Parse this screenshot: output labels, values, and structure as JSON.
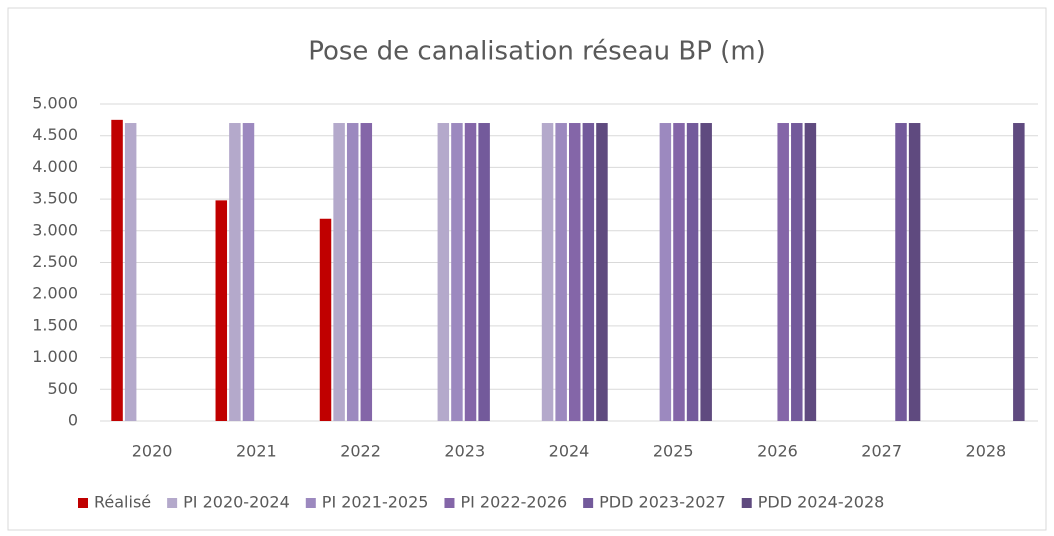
{
  "chart_data": {
    "type": "bar",
    "title": "Pose de canalisation réseau BP (m)",
    "categories": [
      "2020",
      "2021",
      "2022",
      "2023",
      "2024",
      "2025",
      "2026",
      "2027",
      "2028"
    ],
    "series": [
      {
        "name": "Réalisé",
        "color": "#c00000",
        "values": [
          4750,
          3480,
          3190,
          null,
          null,
          null,
          null,
          null,
          null
        ]
      },
      {
        "name": "PI 2020-2024",
        "color": "#b4a9cb",
        "values": [
          4700,
          4700,
          4700,
          4700,
          4700,
          null,
          null,
          null,
          null
        ]
      },
      {
        "name": "PI 2021-2025",
        "color": "#9c89bf",
        "values": [
          null,
          4700,
          4700,
          4700,
          4700,
          4700,
          null,
          null,
          null
        ]
      },
      {
        "name": "PI 2022-2026",
        "color": "#8466a8",
        "values": [
          null,
          null,
          4700,
          4700,
          4700,
          4700,
          4700,
          null,
          null
        ]
      },
      {
        "name": "PDD 2023-2027",
        "color": "#735a9b",
        "values": [
          null,
          null,
          null,
          4700,
          4700,
          4700,
          4700,
          4700,
          null
        ]
      },
      {
        "name": "PDD 2024-2028",
        "color": "#5f4a7f",
        "values": [
          null,
          null,
          null,
          null,
          4700,
          4700,
          4700,
          4700,
          4700
        ]
      }
    ],
    "ylim": [
      0,
      5000
    ],
    "yticks": [
      0,
      500,
      {
        "value": 1000,
        "label": "1.000"
      },
      {
        "value": 1500,
        "label": "1.500"
      },
      {
        "value": 2000,
        "label": "2.000"
      },
      {
        "value": 2500,
        "label": "2.500"
      },
      {
        "value": 3000,
        "label": "3.000"
      },
      {
        "value": 3500,
        "label": "3.500"
      },
      {
        "value": 4000,
        "label": "4.000"
      },
      {
        "value": 4500,
        "label": "4.500"
      },
      {
        "value": 5000,
        "label": "5.000"
      }
    ],
    "grid": true,
    "legend": "bottom"
  }
}
